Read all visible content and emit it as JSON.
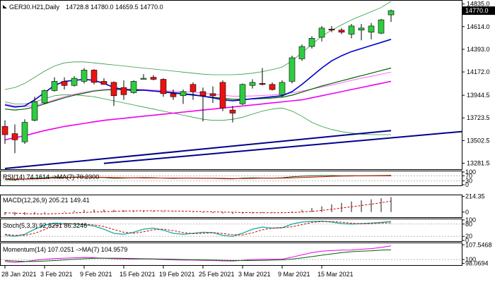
{
  "chart_data": {
    "type": "candlestick",
    "symbol_label": "GER30.H21,Daily",
    "ohlc_label": "14728.8 14780.0 14659.5 14770.0",
    "current_price": 14770.0,
    "current_price_label": "14770.0",
    "price_axis_ticks": [
      "14835.0",
      "14614.0",
      "14393.0",
      "14172.0",
      "13944.5",
      "13723.5",
      "13502.5",
      "13281.5"
    ],
    "price_axis_values": [
      14835.0,
      14614.0,
      14393.0,
      14172.0,
      13944.5,
      13723.5,
      13502.5,
      13281.5
    ],
    "date_labels": [
      "28 Jan 2021",
      "3 Feb 2021",
      "9 Feb 2021",
      "15 Feb 2021",
      "19 Feb 2021",
      "25 Feb 2021",
      "3 Mar 2021",
      "9 Mar 2021",
      "15 Mar 2021"
    ],
    "date_label_index": [
      0,
      4,
      8,
      12,
      16,
      20,
      24,
      28,
      32
    ],
    "colors": {
      "bull": "#2ecc40",
      "bear": "#ee1111",
      "blue_ma": "#0000cc",
      "green_ma": "#006400",
      "magenta_ma": "#ee00ee",
      "pink_ma": "#ff80ff",
      "bollinger": "#2e9a3e",
      "trendline": "#00008b"
    },
    "candles": [
      {
        "o": 13640,
        "h": 13700,
        "l": 13470,
        "c": 13560
      },
      {
        "o": 13570,
        "h": 13660,
        "l": 13380,
        "c": 13510
      },
      {
        "o": 13490,
        "h": 13710,
        "l": 13470,
        "c": 13680
      },
      {
        "o": 13700,
        "h": 13930,
        "l": 13690,
        "c": 13880
      },
      {
        "o": 13870,
        "h": 14000,
        "l": 13860,
        "c": 13990
      },
      {
        "o": 13990,
        "h": 14120,
        "l": 13980,
        "c": 14080
      },
      {
        "o": 14080,
        "h": 14120,
        "l": 14000,
        "c": 14040
      },
      {
        "o": 14040,
        "h": 14130,
        "l": 14030,
        "c": 14110
      },
      {
        "o": 14080,
        "h": 14210,
        "l": 14060,
        "c": 14190
      },
      {
        "o": 14190,
        "h": 14200,
        "l": 14050,
        "c": 14070
      },
      {
        "o": 14080,
        "h": 14110,
        "l": 14050,
        "c": 14050
      },
      {
        "o": 14070,
        "h": 14080,
        "l": 13840,
        "c": 13940
      },
      {
        "o": 14020,
        "h": 14090,
        "l": 13900,
        "c": 13950
      },
      {
        "o": 13970,
        "h": 14090,
        "l": 13960,
        "c": 14080
      },
      {
        "o": 14100,
        "h": 14150,
        "l": 14100,
        "c": 14110
      },
      {
        "o": 14120,
        "h": 14140,
        "l": 14090,
        "c": 14100
      },
      {
        "o": 14100,
        "h": 14110,
        "l": 13930,
        "c": 13960
      },
      {
        "o": 13960,
        "h": 14000,
        "l": 13900,
        "c": 13930
      },
      {
        "o": 13940,
        "h": 14000,
        "l": 13860,
        "c": 13980
      },
      {
        "o": 14050,
        "h": 14070,
        "l": 13900,
        "c": 13980
      },
      {
        "o": 13980,
        "h": 14020,
        "l": 13690,
        "c": 13940
      },
      {
        "o": 13960,
        "h": 14030,
        "l": 13870,
        "c": 13940
      },
      {
        "o": 14070,
        "h": 14090,
        "l": 13790,
        "c": 13820
      },
      {
        "o": 13800,
        "h": 13840,
        "l": 13680,
        "c": 13770
      },
      {
        "o": 13860,
        "h": 14060,
        "l": 13850,
        "c": 14050
      },
      {
        "o": 14040,
        "h": 14100,
        "l": 14010,
        "c": 14070
      },
      {
        "o": 14060,
        "h": 14210,
        "l": 14040,
        "c": 14050
      },
      {
        "o": 14050,
        "h": 14070,
        "l": 13990,
        "c": 14000
      },
      {
        "o": 13950,
        "h": 14090,
        "l": 13930,
        "c": 14070
      },
      {
        "o": 14080,
        "h": 14330,
        "l": 14060,
        "c": 14310
      },
      {
        "o": 14300,
        "h": 14440,
        "l": 14280,
        "c": 14420
      },
      {
        "o": 14420,
        "h": 14520,
        "l": 14400,
        "c": 14500
      },
      {
        "o": 14510,
        "h": 14620,
        "l": 14470,
        "c": 14600
      },
      {
        "o": 14590,
        "h": 14620,
        "l": 14560,
        "c": 14580
      },
      {
        "o": 14580,
        "h": 14600,
        "l": 14540,
        "c": 14560
      },
      {
        "o": 14540,
        "h": 14640,
        "l": 14500,
        "c": 14620
      },
      {
        "o": 14580,
        "h": 14640,
        "l": 14480,
        "c": 14600
      },
      {
        "o": 14560,
        "h": 14650,
        "l": 14490,
        "c": 14620
      },
      {
        "o": 14550,
        "h": 14690,
        "l": 14540,
        "c": 14680
      },
      {
        "o": 14728.8,
        "h": 14780,
        "l": 14659.5,
        "c": 14770
      }
    ],
    "ma_blue": [
      13850,
      13830,
      13840,
      13900,
      13970,
      14040,
      14080,
      14090,
      14100,
      14090,
      14060,
      14020,
      14000,
      13990,
      13995,
      13985,
      13980,
      13970,
      13960,
      13950,
      13935,
      13920,
      13900,
      13890,
      13900,
      13910,
      13920,
      13930,
      13940,
      13980,
      14050,
      14130,
      14210,
      14280,
      14330,
      14370,
      14400,
      14430,
      14460,
      14490
    ],
    "ma_green": [
      13810,
      13800,
      13810,
      13830,
      13860,
      13890,
      13920,
      13945,
      13965,
      13985,
      13995,
      14000,
      14000,
      14000,
      13995,
      13985,
      13975,
      13965,
      13955,
      13945,
      13935,
      13925,
      13915,
      13905,
      13905,
      13908,
      13912,
      13918,
      13925,
      13945,
      13975,
      14005,
      14035,
      14060,
      14085,
      14110,
      14135,
      14160,
      14185,
      14210
    ],
    "ma_magenta": [
      13510,
      13530,
      13550,
      13575,
      13600,
      13620,
      13640,
      13655,
      13670,
      13685,
      13700,
      13710,
      13720,
      13730,
      13740,
      13750,
      13760,
      13770,
      13780,
      13790,
      13800,
      13810,
      13820,
      13830,
      13840,
      13850,
      13860,
      13870,
      13880,
      13890,
      13900,
      13920,
      13940,
      13960,
      13980,
      14000,
      14020,
      14040,
      14060,
      14080
    ],
    "ma_pink": [
      13860,
      13840,
      13835,
      13845,
      13870,
      13900,
      13930,
      13955,
      13975,
      13990,
      14000,
      14005,
      14005,
      14003,
      14000,
      13995,
      13990,
      13985,
      13980,
      13975,
      13965,
      13955,
      13945,
      13935,
      13935,
      13938,
      13942,
      13948,
      13955,
      13968,
      13985,
      14005,
      14025,
      14045,
      14065,
      14090,
      14110,
      14130,
      14150,
      14170
    ],
    "bb_upper": [
      14000,
      14020,
      14060,
      14120,
      14180,
      14230,
      14260,
      14270,
      14270,
      14260,
      14250,
      14240,
      14230,
      14220,
      14210,
      14200,
      14190,
      14180,
      14170,
      14160,
      14150,
      14145,
      14145,
      14145,
      14150,
      14160,
      14175,
      14195,
      14220,
      14280,
      14360,
      14440,
      14520,
      14580,
      14630,
      14680,
      14720,
      14760,
      14800,
      14860
    ],
    "bb_lower": [
      13880,
      13860,
      13860,
      13880,
      13910,
      13940,
      13950,
      13950,
      13940,
      13930,
      13910,
      13890,
      13870,
      13850,
      13830,
      13810,
      13790,
      13770,
      13750,
      13730,
      13710,
      13700,
      13700,
      13710,
      13730,
      13760,
      13790,
      13810,
      13820,
      13790,
      13740,
      13680,
      13640,
      13610,
      13590,
      13575,
      13565,
      13560,
      13560,
      13560
    ],
    "bb_upper_bars_from": 0,
    "trendline": [
      {
        "bar": 0,
        "v": 13230
      },
      {
        "bar": 39,
        "v": 13600
      }
    ],
    "trendline2": [
      {
        "bar": 10,
        "v": 13280
      },
      {
        "bar": 39,
        "v": 13530
      }
    ],
    "rsi": {
      "label": "RSI(14) 74.1614  ->MA(7) 70.2300",
      "ticks": [
        "100",
        "70",
        "30",
        "0"
      ],
      "tick_values": [
        100,
        70,
        30,
        0
      ],
      "values": [
        40,
        38,
        45,
        52,
        56,
        60,
        58,
        60,
        62,
        58,
        56,
        50,
        52,
        55,
        56,
        55,
        52,
        50,
        52,
        52,
        50,
        50,
        47,
        46,
        52,
        54,
        53,
        52,
        55,
        62,
        67,
        70,
        72,
        72,
        70,
        71,
        70,
        71,
        72,
        74.16
      ],
      "ma": [
        45,
        44,
        44,
        45,
        48,
        52,
        55,
        57,
        58,
        59,
        58,
        57,
        55,
        54,
        53,
        53,
        53,
        53,
        52,
        52,
        51,
        51,
        50,
        49,
        49,
        50,
        51,
        51,
        52,
        54,
        57,
        60,
        63,
        66,
        68,
        69,
        70,
        70,
        70,
        70.23
      ]
    },
    "macd": {
      "label": "MACD(12,26,9) 205.21 149.41",
      "ticks": [
        "214.35",
        "0"
      ],
      "tick_values": [
        214.35,
        0
      ],
      "hist": [
        -40,
        -45,
        -40,
        -30,
        -15,
        0,
        10,
        20,
        30,
        35,
        35,
        30,
        25,
        20,
        18,
        15,
        10,
        5,
        0,
        -5,
        -10,
        -15,
        -20,
        -25,
        -22,
        -18,
        -12,
        -8,
        -5,
        10,
        30,
        55,
        80,
        105,
        125,
        145,
        160,
        175,
        190,
        205.21
      ],
      "signal": [
        -10,
        -15,
        -20,
        -25,
        -25,
        -22,
        -18,
        -12,
        -5,
        0,
        5,
        10,
        14,
        16,
        17,
        17,
        16,
        14,
        12,
        9,
        6,
        3,
        0,
        -3,
        -6,
        -9,
        -10,
        -10,
        -9,
        -6,
        0,
        10,
        22,
        38,
        55,
        72,
        90,
        108,
        128,
        149.41
      ]
    },
    "stoch": {
      "label": "Stoch(5,3,3) 92.8291 86.3246",
      "ticks": [
        "100",
        "80",
        "20",
        "0"
      ],
      "tick_values": [
        100,
        80,
        20,
        0
      ],
      "k": [
        25,
        20,
        30,
        55,
        75,
        85,
        82,
        80,
        78,
        70,
        55,
        35,
        30,
        40,
        55,
        60,
        50,
        35,
        30,
        35,
        40,
        38,
        25,
        20,
        35,
        55,
        65,
        60,
        62,
        80,
        90,
        93,
        94,
        90,
        82,
        80,
        82,
        85,
        88,
        92.83
      ],
      "d": [
        30,
        25,
        25,
        35,
        53,
        72,
        80,
        82,
        80,
        76,
        68,
        53,
        40,
        35,
        42,
        52,
        55,
        48,
        38,
        33,
        35,
        38,
        34,
        28,
        27,
        37,
        52,
        60,
        62,
        67,
        77,
        88,
        92,
        92,
        89,
        84,
        81,
        82,
        85,
        86.32
      ]
    },
    "momentum": {
      "label": "Momentum(14) 107.0251  ->MA(7) 104.9579",
      "ticks": [
        "107.5468",
        "100",
        "98.0694"
      ],
      "tick_values": [
        107.5468,
        100,
        98.0694
      ],
      "values": [
        99.0,
        98.5,
        98.9,
        99.6,
        100.1,
        100.5,
        100.7,
        100.9,
        101.1,
        100.9,
        100.7,
        100.4,
        100.3,
        100.2,
        100.3,
        100.2,
        100.0,
        99.8,
        99.7,
        99.7,
        99.6,
        99.5,
        99.3,
        99.2,
        99.6,
        100.0,
        100.1,
        100.1,
        100.2,
        101.2,
        102.4,
        103.5,
        104.3,
        104.6,
        104.8,
        104.9,
        105.3,
        105.6,
        106.2,
        107.03
      ],
      "ma": [
        99.5,
        99.2,
        99.0,
        99.0,
        99.2,
        99.5,
        99.8,
        100.1,
        100.4,
        100.6,
        100.7,
        100.7,
        100.6,
        100.5,
        100.4,
        100.3,
        100.2,
        100.1,
        100.0,
        99.9,
        99.8,
        99.7,
        99.6,
        99.5,
        99.5,
        99.5,
        99.6,
        99.7,
        99.8,
        100.2,
        100.8,
        101.5,
        102.2,
        102.9,
        103.5,
        104.0,
        104.3,
        104.5,
        104.8,
        104.96
      ]
    }
  }
}
